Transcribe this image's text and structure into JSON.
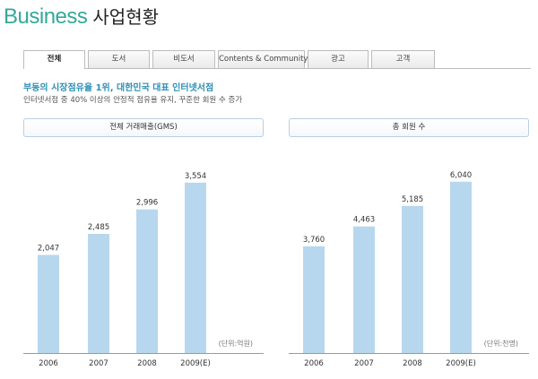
{
  "header": {
    "title_en": "Business",
    "title_ko": "사업현황"
  },
  "tabs": [
    {
      "label": "전체",
      "active": true
    },
    {
      "label": "도서",
      "active": false
    },
    {
      "label": "비도서",
      "active": false
    },
    {
      "label": "Contents & Community",
      "active": false
    },
    {
      "label": "광고",
      "active": false
    },
    {
      "label": "고객",
      "active": false
    }
  ],
  "intro": {
    "headline": "부동의 시장점유율 1위, 대한민국 대표 인터넷서점",
    "subline": "인터넷서점 중 40% 이상의 안정적 점유율 유지, 꾸준한 회원 수 증가"
  },
  "colors": {
    "accent": "#35a79a",
    "bar": "#b7d7ee",
    "headline": "#2d8fb5"
  },
  "chart_data": [
    {
      "type": "bar",
      "title": "전체 거래매출(GMS)",
      "categories": [
        "2006",
        "2007",
        "2008",
        "2009(E)"
      ],
      "values": [
        2047,
        2485,
        2996,
        3554
      ],
      "value_labels": [
        "2,047",
        "2,485",
        "2,996",
        "3,554"
      ],
      "unit": "(단위:억원)",
      "ylim": [
        0,
        4000
      ]
    },
    {
      "type": "bar",
      "title": "총 회원 수",
      "categories": [
        "2006",
        "2007",
        "2008",
        "2009(E)"
      ],
      "values": [
        3760,
        4463,
        5185,
        6040
      ],
      "value_labels": [
        "3,760",
        "4,463",
        "5,185",
        "6,040"
      ],
      "unit": "(단위:천명)",
      "ylim": [
        0,
        6760
      ]
    }
  ]
}
